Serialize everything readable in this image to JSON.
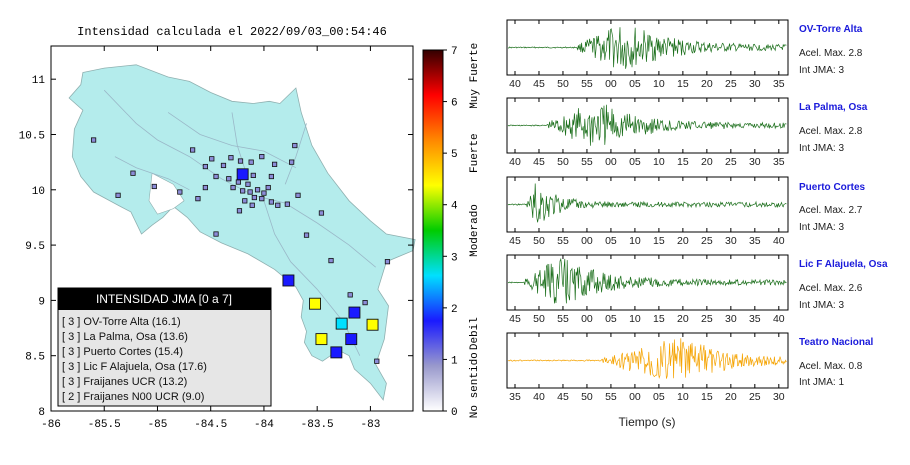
{
  "map": {
    "title": "Intensidad calculada el 2022/09/03_00:54:46",
    "xticks": [
      "-86",
      "-85.5",
      "-85",
      "-84.5",
      "-84",
      "-83.5",
      "-83"
    ],
    "yticks": [
      "8",
      "8.5",
      "9",
      "9.5",
      "10",
      "10.5",
      "11"
    ],
    "xlim": [
      -86,
      -82.6
    ],
    "ylim": [
      8,
      11.3
    ],
    "land_color": "#b4ecec",
    "stations_small": [
      {
        "lon": -84.67,
        "lat": 10.36
      },
      {
        "lon": -84.49,
        "lat": 10.28
      },
      {
        "lon": -84.38,
        "lat": 10.22
      },
      {
        "lon": -84.31,
        "lat": 10.29
      },
      {
        "lon": -84.22,
        "lat": 10.26
      },
      {
        "lon": -84.12,
        "lat": 10.25
      },
      {
        "lon": -84.02,
        "lat": 10.3
      },
      {
        "lon": -83.9,
        "lat": 10.23
      },
      {
        "lon": -83.74,
        "lat": 10.25
      },
      {
        "lon": -84.45,
        "lat": 10.12
      },
      {
        "lon": -84.33,
        "lat": 10.1
      },
      {
        "lon": -84.24,
        "lat": 10.07
      },
      {
        "lon": -84.15,
        "lat": 10.05
      },
      {
        "lon": -84.1,
        "lat": 10.13
      },
      {
        "lon": -84.29,
        "lat": 10.02
      },
      {
        "lon": -84.2,
        "lat": 9.99
      },
      {
        "lon": -84.13,
        "lat": 9.98
      },
      {
        "lon": -84.06,
        "lat": 10.0
      },
      {
        "lon": -84.0,
        "lat": 9.97
      },
      {
        "lon": -83.96,
        "lat": 10.02
      },
      {
        "lon": -84.09,
        "lat": 9.93
      },
      {
        "lon": -84.02,
        "lat": 9.92
      },
      {
        "lon": -83.93,
        "lat": 9.89
      },
      {
        "lon": -84.18,
        "lat": 9.9
      },
      {
        "lon": -84.11,
        "lat": 9.86
      },
      {
        "lon": -84.23,
        "lat": 9.81
      },
      {
        "lon": -83.87,
        "lat": 9.86
      },
      {
        "lon": -83.78,
        "lat": 9.87
      },
      {
        "lon": -83.68,
        "lat": 9.95
      },
      {
        "lon": -84.55,
        "lat": 10.02
      },
      {
        "lon": -84.62,
        "lat": 9.92
      },
      {
        "lon": -84.79,
        "lat": 9.98
      },
      {
        "lon": -85.03,
        "lat": 10.03
      },
      {
        "lon": -85.23,
        "lat": 10.15
      },
      {
        "lon": -85.37,
        "lat": 9.95
      },
      {
        "lon": -85.6,
        "lat": 10.45
      },
      {
        "lon": -84.45,
        "lat": 9.6
      },
      {
        "lon": -83.6,
        "lat": 9.59
      },
      {
        "lon": -83.46,
        "lat": 9.79
      },
      {
        "lon": -83.37,
        "lat": 9.36
      },
      {
        "lon": -83.19,
        "lat": 9.05
      },
      {
        "lon": -83.05,
        "lat": 8.98
      },
      {
        "lon": -82.84,
        "lat": 9.35
      },
      {
        "lon": -82.94,
        "lat": 8.45
      },
      {
        "lon": -83.71,
        "lat": 10.4
      },
      {
        "lon": -83.93,
        "lat": 10.12
      },
      {
        "lon": -84.55,
        "lat": 10.21
      }
    ],
    "stations_large": [
      {
        "lon": -84.2,
        "lat": 10.14,
        "int": 2
      },
      {
        "lon": -83.77,
        "lat": 9.18,
        "int": 2
      },
      {
        "lon": -83.52,
        "lat": 8.97,
        "int": 4
      },
      {
        "lon": -83.15,
        "lat": 8.89,
        "int": 2
      },
      {
        "lon": -83.27,
        "lat": 8.79,
        "int": 3
      },
      {
        "lon": -82.98,
        "lat": 8.78,
        "int": 4
      },
      {
        "lon": -83.46,
        "lat": 8.65,
        "int": 4
      },
      {
        "lon": -83.18,
        "lat": 8.65,
        "int": 2
      },
      {
        "lon": -83.32,
        "lat": 8.53,
        "int": 2
      }
    ]
  },
  "legend": {
    "title": "INTENSIDAD JMA [0 a 7]",
    "items": [
      "[ 3 ]  OV-Torre Alta (16.1)",
      "[ 3 ]  La Palma, Osa (13.6)",
      "[ 3 ]  Puerto Cortes (15.4)",
      "[ 3 ]  Lic F Alajuela, Osa (17.6)",
      "[ 3 ]  Fraijanes UCR (13.2)",
      "[ 2 ]  Fraijanes N00 UCR (9.0)"
    ]
  },
  "colorbar": {
    "ticks": [
      "0",
      "1",
      "2",
      "3",
      "4",
      "5",
      "6",
      "7"
    ],
    "labels": [
      "No sentido",
      "Debil",
      "Moderado",
      "Fuerte",
      "Muy Fuerte"
    ],
    "colors": [
      "#ffffff",
      "#9999cc",
      "#1a1aff",
      "#00e0ff",
      "#00cc00",
      "#ffff00",
      "#ff8800",
      "#ff0000",
      "#330000"
    ]
  },
  "chart_data": {
    "type": "line",
    "xlabel": "Tiempo (s)",
    "series": [
      {
        "name": "OV-Torre Alta",
        "accel": "Acel. Max. 2.8",
        "jma": "Int JMA: 3",
        "color": "#1a6e1a",
        "ticks": [
          "40",
          "45",
          "50",
          "55",
          "00",
          "05",
          "10",
          "15",
          "20",
          "25",
          "30",
          "35"
        ],
        "first_tick": 40,
        "onset": 2.6,
        "peak": 4.5
      },
      {
        "name": "La Palma, Osa",
        "accel": "Acel. Max. 2.8",
        "jma": "Int JMA: 3",
        "color": "#1a6e1a",
        "ticks": [
          "40",
          "45",
          "50",
          "55",
          "00",
          "05",
          "10",
          "15",
          "20",
          "25",
          "30",
          "35"
        ],
        "first_tick": 40,
        "onset": 1.3,
        "peak": 3.3
      },
      {
        "name": "Puerto Cortes",
        "accel": "Acel. Max. 2.7",
        "jma": "Int JMA: 3",
        "color": "#1a6e1a",
        "ticks": [
          "45",
          "50",
          "55",
          "00",
          "05",
          "10",
          "15",
          "20",
          "25",
          "30",
          "35",
          "40"
        ],
        "first_tick": 45,
        "onset": 0.5,
        "peak": 0.9
      },
      {
        "name": "Lic F Alajuela, Osa",
        "accel": "Acel. Max. 2.6",
        "jma": "Int JMA: 3",
        "color": "#1a6e1a",
        "ticks": [
          "45",
          "50",
          "55",
          "00",
          "05",
          "10",
          "15",
          "20",
          "25",
          "30",
          "35",
          "40"
        ],
        "first_tick": 45,
        "onset": 0.4,
        "peak": 1.8
      },
      {
        "name": "Teatro Nacional",
        "accel": "Acel. Max. 0.8",
        "jma": "Int JMA: 1",
        "color": "#f5a300",
        "ticks": [
          "35",
          "40",
          "45",
          "50",
          "55",
          "00",
          "05",
          "10",
          "15",
          "20",
          "25",
          "30"
        ],
        "first_tick": 35,
        "onset": 3.6,
        "peak": 6.8
      }
    ]
  }
}
